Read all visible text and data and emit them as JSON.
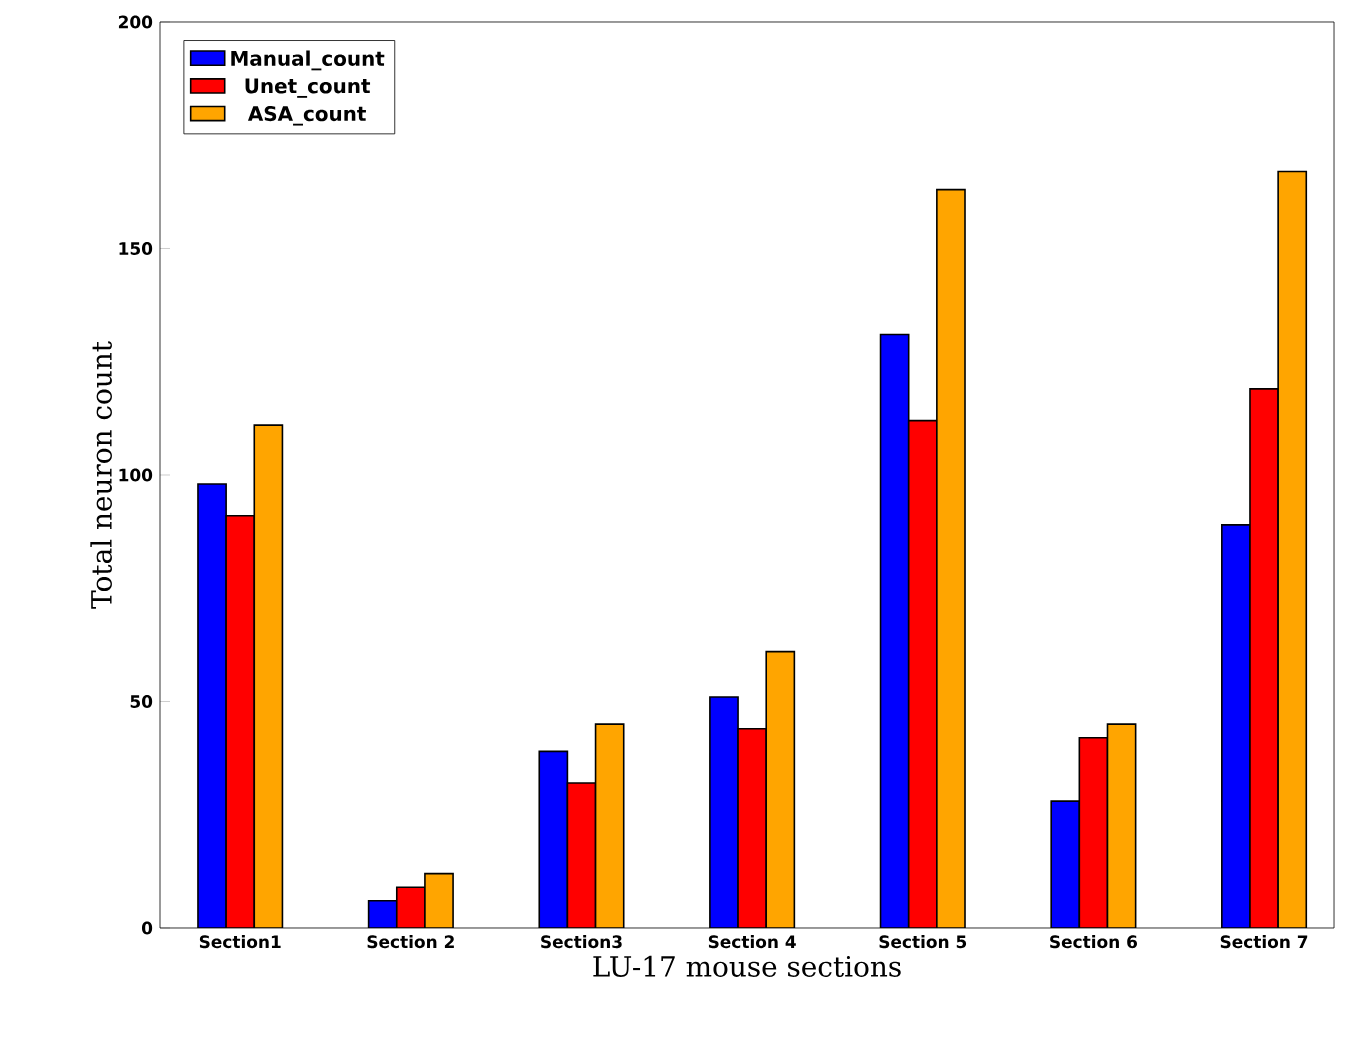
{
  "chart_data": {
    "type": "bar",
    "xlabel": "LU-17 mouse sections",
    "ylabel": "Total neuron count",
    "categories": [
      "Section1",
      "Section 2",
      "Section3",
      "Section 4",
      "Section 5",
      "Section 6",
      "Section 7"
    ],
    "series": [
      {
        "name": "Manual_count",
        "color": "#0000ff",
        "values": [
          98,
          6,
          39,
          51,
          131,
          28,
          89
        ]
      },
      {
        "name": "Unet_count",
        "color": "#ff0000",
        "values": [
          91,
          9,
          32,
          44,
          112,
          42,
          119
        ]
      },
      {
        "name": "ASA_count",
        "color": "#ffa500",
        "values": [
          111,
          12,
          45,
          61,
          163,
          45,
          167
        ]
      }
    ],
    "ylim": [
      0,
      200
    ],
    "yticks": [
      0,
      50,
      100,
      150,
      200
    ],
    "grid": false,
    "legend": "top left"
  }
}
